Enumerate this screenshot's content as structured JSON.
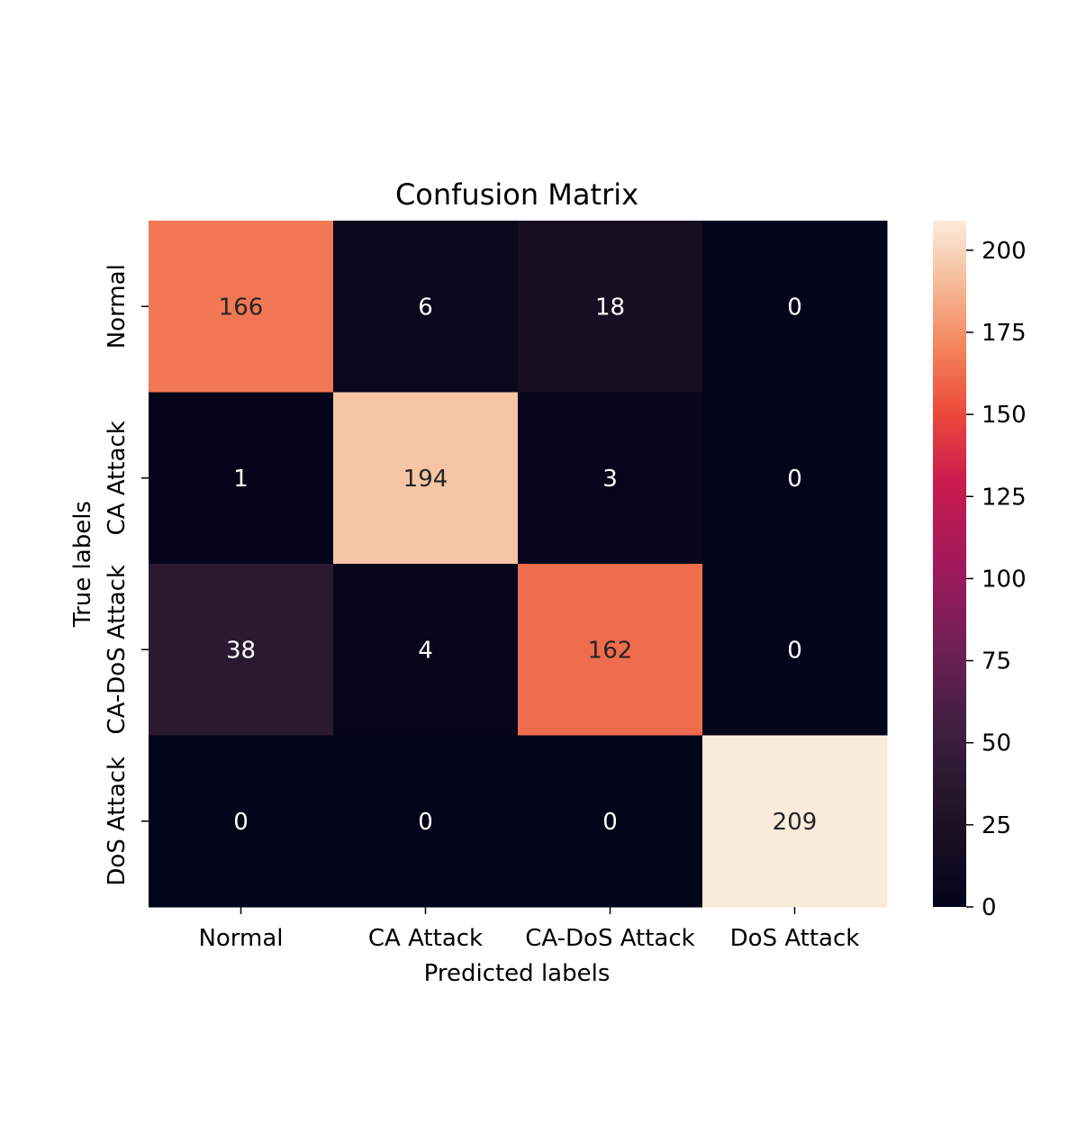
{
  "chart_data": {
    "type": "heatmap",
    "title": "Confusion Matrix",
    "xlabel": "Predicted labels",
    "ylabel": "True labels",
    "x_categories": [
      "Normal",
      "CA Attack",
      "CA-DoS Attack",
      "DoS Attack"
    ],
    "y_categories": [
      "Normal",
      "CA Attack",
      "CA-DoS Attack",
      "DoS Attack"
    ],
    "matrix": [
      [
        166,
        6,
        18,
        0
      ],
      [
        1,
        194,
        3,
        0
      ],
      [
        38,
        4,
        162,
        0
      ],
      [
        0,
        0,
        0,
        209
      ]
    ],
    "colorbar": {
      "min": 0,
      "max": 209,
      "ticks": [
        0,
        25,
        50,
        75,
        100,
        125,
        150,
        175,
        200
      ],
      "colormap": "rocket"
    }
  }
}
